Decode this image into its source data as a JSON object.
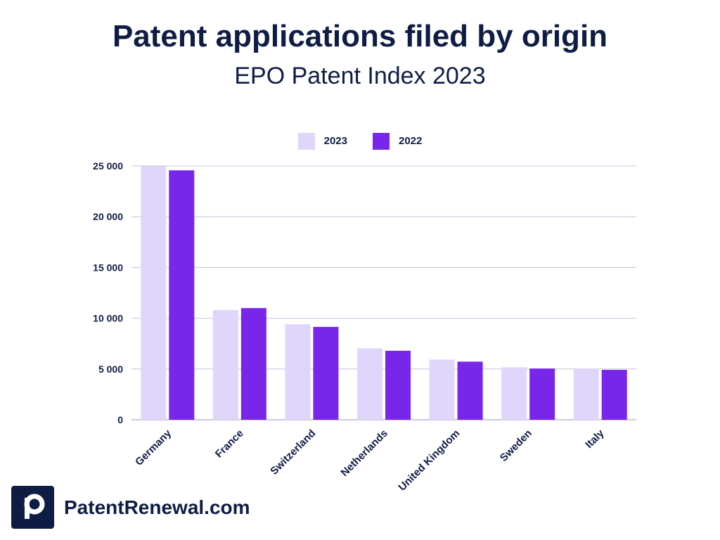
{
  "chart_data": {
    "type": "bar",
    "title": "Patent applications filed by origin",
    "subtitle": "EPO Patent Index 2023",
    "xlabel": "",
    "ylabel": "",
    "categories": [
      "Germany",
      "France",
      "Switzerland",
      "Netherlands",
      "United Kingdom",
      "Sweden",
      "Italy"
    ],
    "series": [
      {
        "name": "2023",
        "color": "#e0d6fb",
        "values": [
          24966,
          10814,
          9410,
          7033,
          5925,
          5168,
          5053
        ]
      },
      {
        "name": "2022",
        "color": "#7826ea",
        "values": [
          24566,
          10999,
          9149,
          6797,
          5724,
          5048,
          4914
        ]
      }
    ],
    "ylim": [
      0,
      25000
    ],
    "yticks": [
      0,
      5000,
      10000,
      15000,
      20000,
      25000
    ],
    "ytick_labels": [
      "0",
      "5 000",
      "10 000",
      "15 000",
      "20 000",
      "25 000"
    ],
    "grid": true,
    "legend_position": "top-center"
  },
  "branding": {
    "logo_letter": "p",
    "site": "PatentRenewal.com",
    "colors": {
      "navy": "#0f1d45",
      "grid": "#c9c3dc"
    }
  }
}
